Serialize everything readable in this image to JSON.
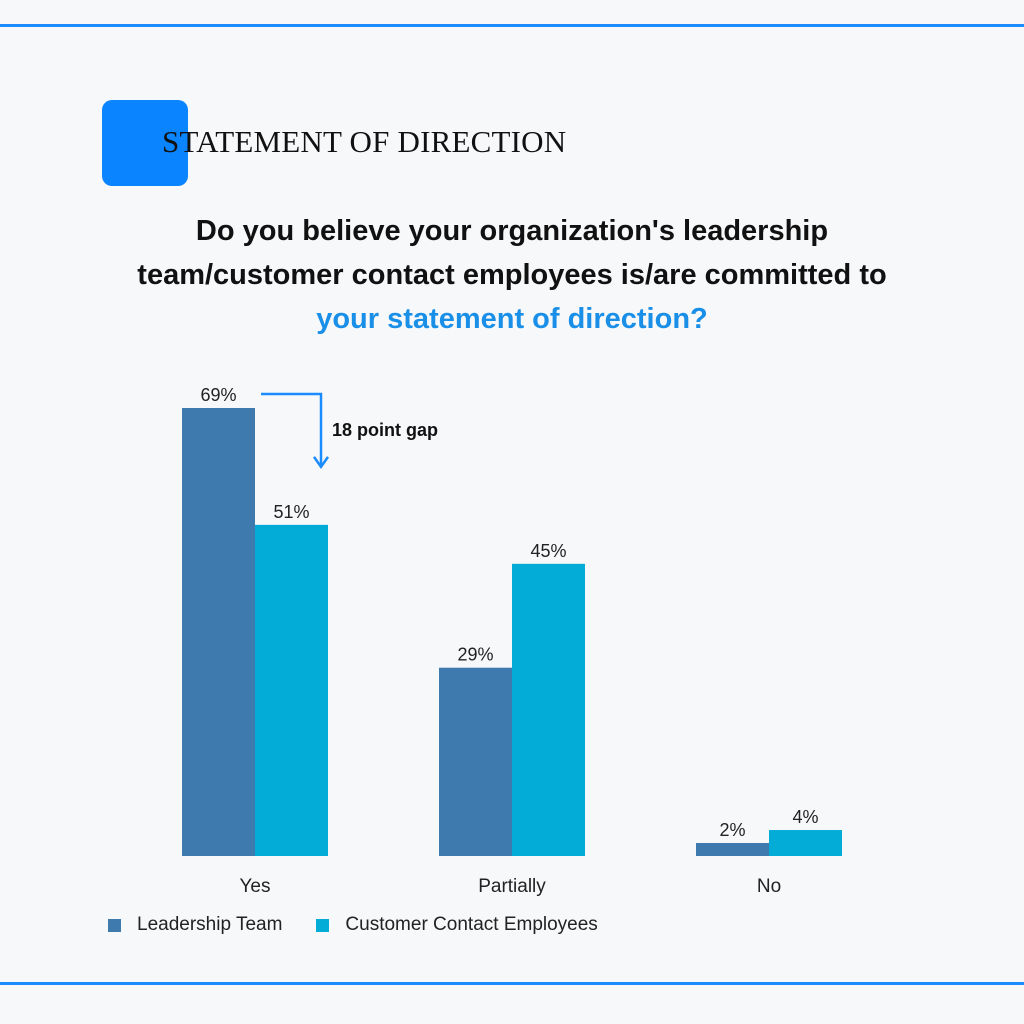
{
  "header": {
    "section_title": "STATEMENT OF DIRECTION",
    "question_part1": "Do you believe your organization's leadership team/customer contact employees is/are committed to ",
    "question_highlight": "your statement of direction?"
  },
  "colors": {
    "accent": "#1a8cff",
    "highlight_text": "#1a8fe8",
    "leadership": "#3f7aaf",
    "employees": "#03acd6"
  },
  "chart_data": {
    "type": "bar",
    "categories": [
      "Yes",
      "Partially",
      "No"
    ],
    "series": [
      {
        "name": "Leadership Team",
        "values": [
          69,
          29,
          2
        ],
        "labels": [
          "69%",
          "29%",
          "2%"
        ]
      },
      {
        "name": "Customer Contact Employees",
        "values": [
          51,
          45,
          4
        ],
        "labels": [
          "51%",
          "45%",
          "4%"
        ]
      }
    ],
    "ylim": [
      0,
      69
    ],
    "grid": false,
    "legend_position": "bottom-left",
    "annotation": {
      "text": "18 point gap",
      "from_value": 69,
      "to_value": 51,
      "category": "Yes"
    }
  }
}
